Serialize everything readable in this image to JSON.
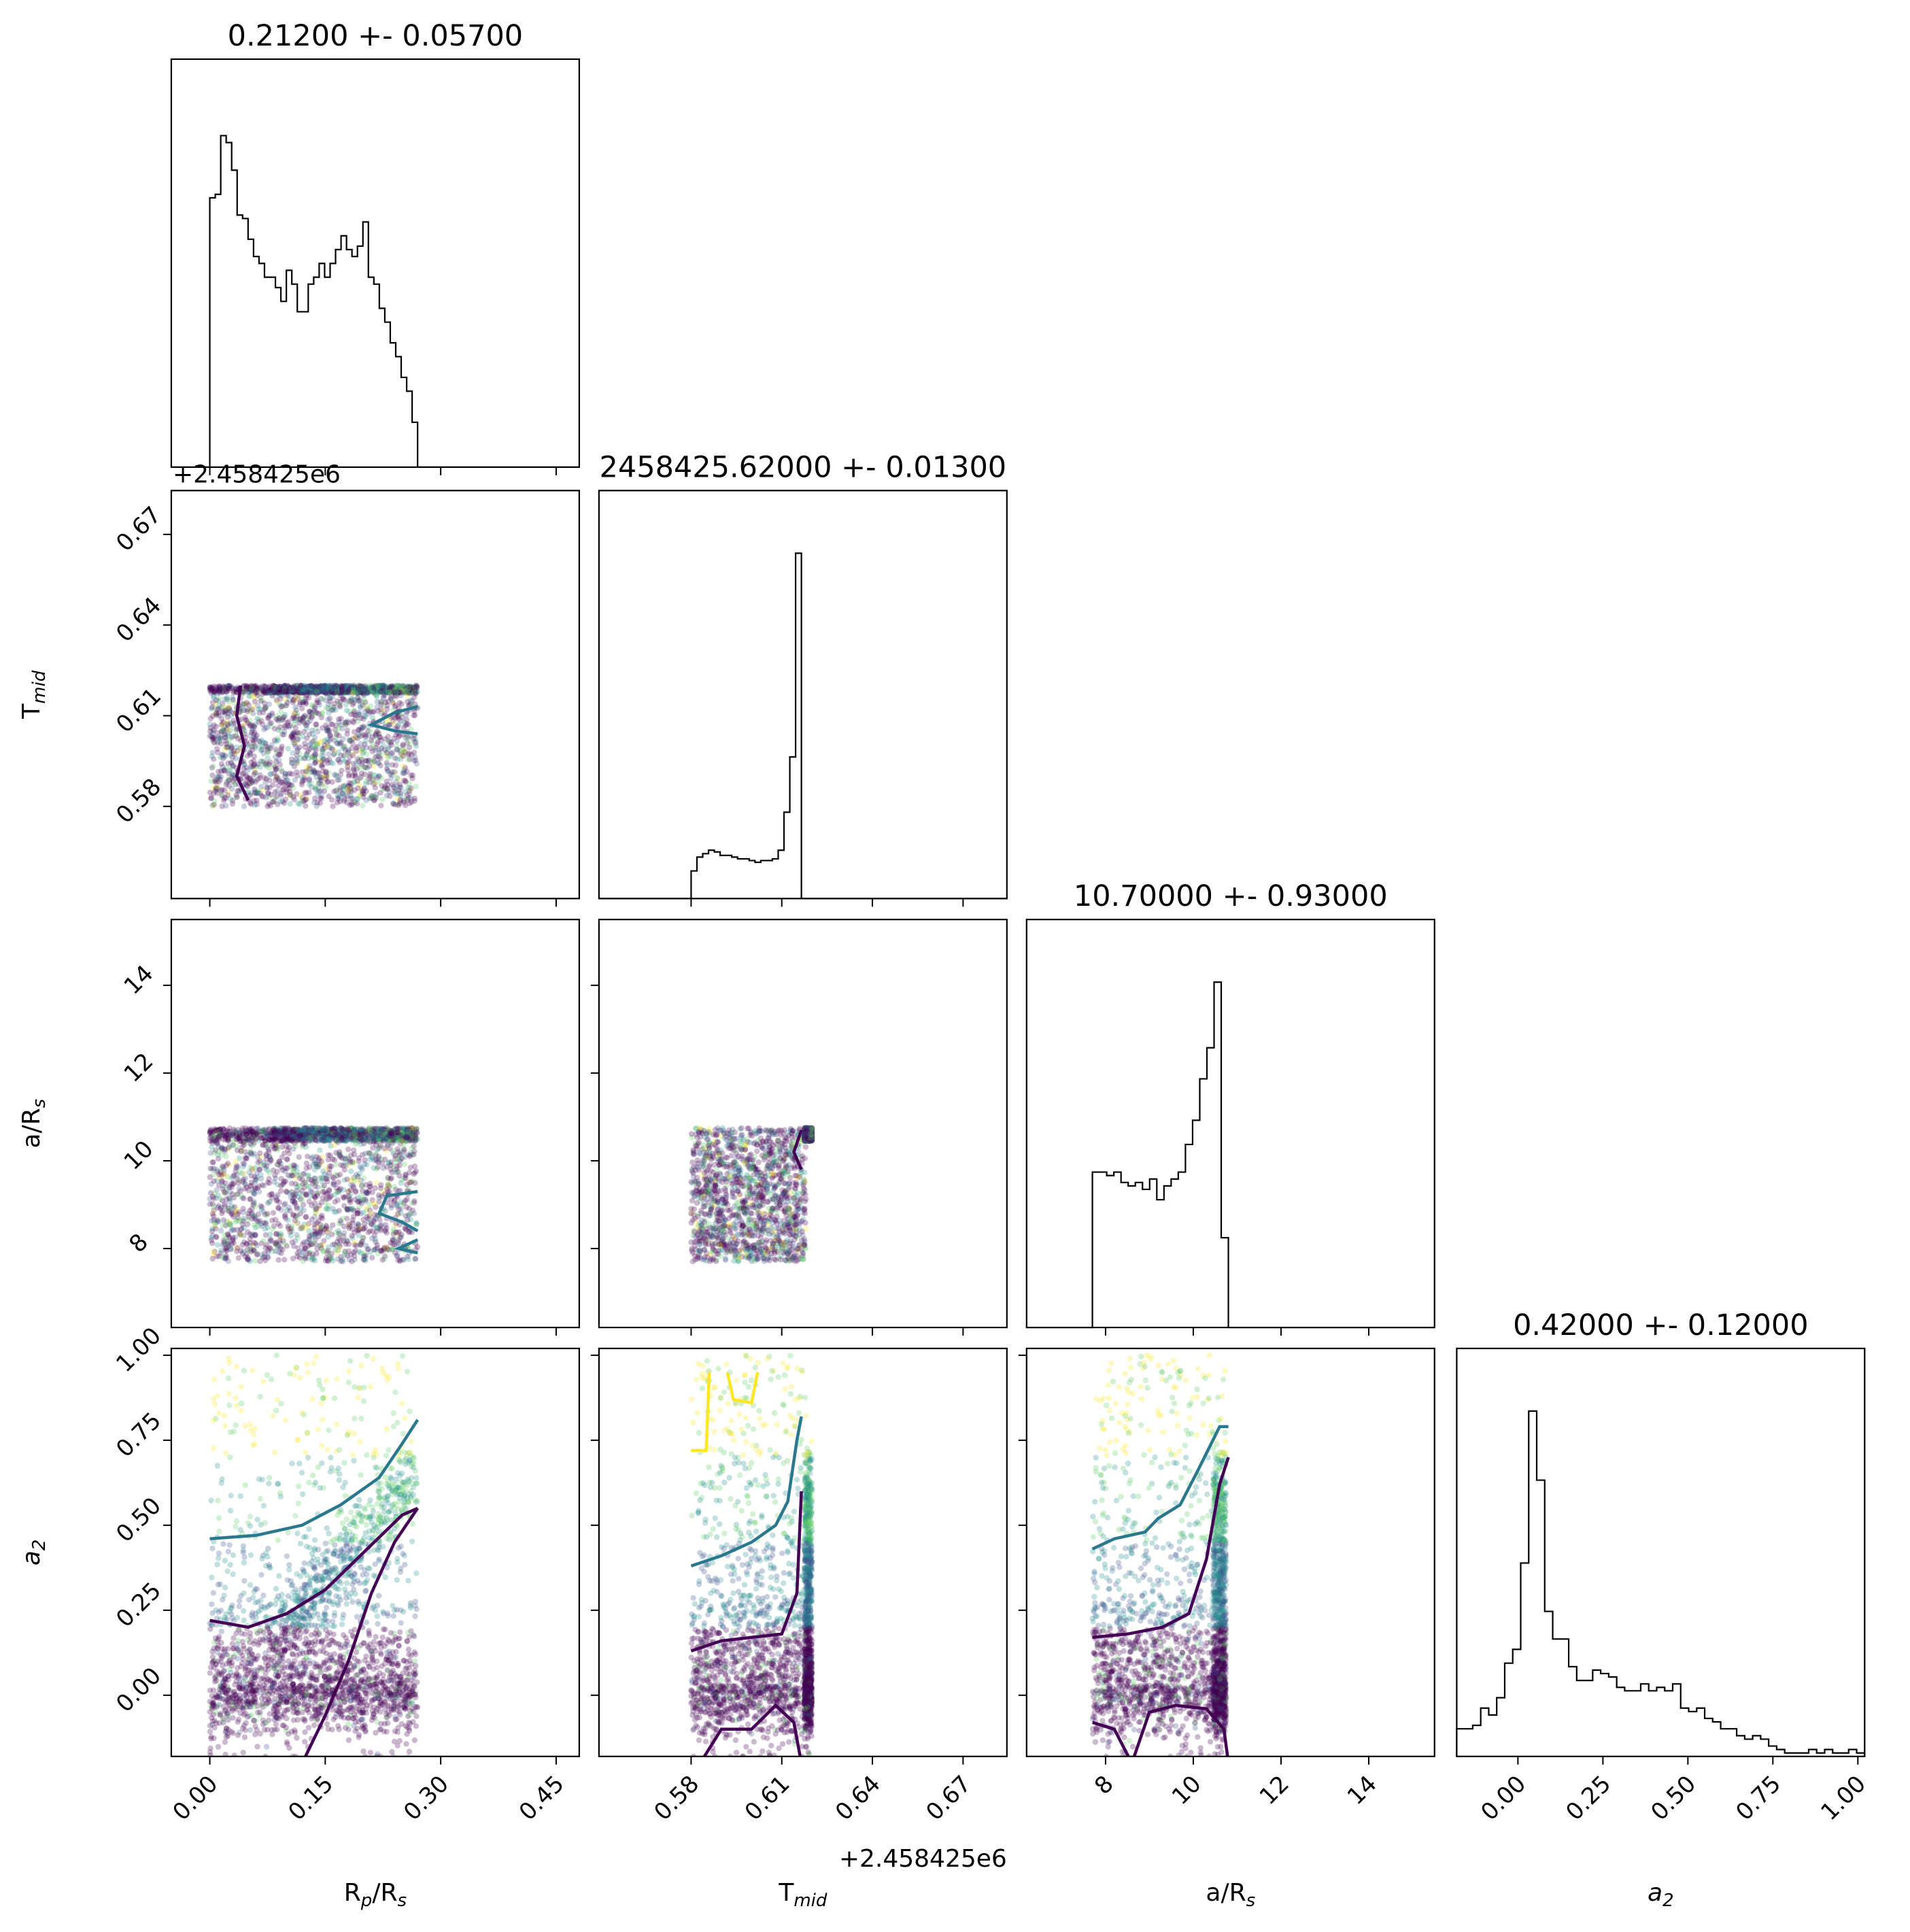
{
  "chart_data": {
    "type": "scatter",
    "kind": "corner-plot",
    "parameters": [
      {
        "key": "rp",
        "label": "R_p/R_s",
        "base": "R",
        "sub": "p",
        "tail": "/R",
        "tail_sub": "s",
        "range": [
          -0.05,
          0.48
        ],
        "ticks": [
          "0.00",
          "0.15",
          "0.30",
          "0.45"
        ],
        "tick_values": [
          0.0,
          0.15,
          0.3,
          0.45
        ],
        "title": "0.21200 +- 0.05700",
        "offset_text": ""
      },
      {
        "key": "tmid",
        "label": "T_mid",
        "base": "T",
        "sub": "mid",
        "tail": "",
        "tail_sub": "",
        "range": [
          0.5495,
          0.6845
        ],
        "ticks": [
          "0.58",
          "0.61",
          "0.64",
          "0.67"
        ],
        "tick_values": [
          0.58,
          0.61,
          0.64,
          0.67
        ],
        "title": "2458425.62000 +- 0.01300",
        "offset_text": "+2.458425e6"
      },
      {
        "key": "ars",
        "label": "a/R_s",
        "base": "a/R",
        "sub": "s",
        "tail": "",
        "tail_sub": "",
        "range": [
          6.2,
          15.5
        ],
        "ticks": [
          "8",
          "10",
          "12",
          "14"
        ],
        "tick_values": [
          8,
          10,
          12,
          14
        ],
        "title": "10.70000 +- 0.93000",
        "offset_text": ""
      },
      {
        "key": "a2",
        "label": "a_2",
        "base": "a",
        "sub": "2",
        "tail": "",
        "tail_sub": "",
        "italic": true,
        "range": [
          -0.18,
          1.02
        ],
        "ticks": [
          "0.00",
          "0.25",
          "0.50",
          "0.75",
          "1.00"
        ],
        "tick_values": [
          0.0,
          0.25,
          0.5,
          0.75,
          1.0
        ],
        "title": "0.42000 +- 0.12000",
        "offset_text": ""
      }
    ],
    "histograms": {
      "rp": {
        "bins": [
          0.0,
          0.27
        ],
        "counts": [
          0.78,
          0.79,
          0.96,
          0.94,
          0.86,
          0.73,
          0.72,
          0.66,
          0.61,
          0.59,
          0.55,
          0.55,
          0.52,
          0.48,
          0.57,
          0.53,
          0.45,
          0.45,
          0.53,
          0.55,
          0.59,
          0.55,
          0.59,
          0.63,
          0.67,
          0.63,
          0.61,
          0.64,
          0.71,
          0.55,
          0.53,
          0.46,
          0.42,
          0.36,
          0.32,
          0.26,
          0.22,
          0.13
        ]
      },
      "tmid": {
        "bins": [
          0.58,
          0.6165
        ],
        "counts": [
          0.08,
          0.12,
          0.13,
          0.14,
          0.135,
          0.125,
          0.125,
          0.12,
          0.115,
          0.115,
          0.11,
          0.105,
          0.11,
          0.11,
          0.115,
          0.14,
          0.25,
          0.41,
          1.0
        ]
      },
      "ars": {
        "bins": [
          7.7,
          10.8
        ],
        "counts": [
          0.45,
          0.45,
          0.44,
          0.45,
          0.42,
          0.41,
          0.42,
          0.4,
          0.43,
          0.37,
          0.41,
          0.43,
          0.45,
          0.53,
          0.6,
          0.72,
          0.81,
          1.0,
          0.26
        ]
      },
      "a2": {
        "bins": [
          -0.18,
          1.02
        ],
        "counts": [
          0.08,
          0.08,
          0.09,
          0.14,
          0.12,
          0.17,
          0.27,
          0.31,
          0.56,
          1.0,
          0.8,
          0.42,
          0.34,
          0.34,
          0.26,
          0.22,
          0.22,
          0.25,
          0.24,
          0.23,
          0.2,
          0.19,
          0.19,
          0.21,
          0.19,
          0.2,
          0.19,
          0.21,
          0.14,
          0.13,
          0.14,
          0.11,
          0.1,
          0.08,
          0.08,
          0.06,
          0.05,
          0.06,
          0.05,
          0.03,
          0.02,
          0.01,
          0.01,
          0.01,
          0.02,
          0.01,
          0.02,
          0.01,
          0.01,
          0.02,
          0.01
        ]
      }
    },
    "point_clouds": {
      "rp_tmid": {
        "x_range": [
          0.0,
          0.27
        ],
        "y_range": [
          0.58,
          0.62
        ]
      },
      "rp_ars": {
        "x_range": [
          0.0,
          0.27
        ],
        "y_range": [
          7.7,
          10.75
        ]
      },
      "tmid_ars": {
        "x_range": [
          0.58,
          0.618
        ],
        "y_range": [
          7.7,
          10.75
        ]
      },
      "rp_a2": {
        "x_range": [
          0.0,
          0.27
        ],
        "y_range": [
          -0.18,
          1.0
        ]
      },
      "tmid_a2": {
        "x_range": [
          0.58,
          0.618
        ],
        "y_range": [
          -0.18,
          1.0
        ]
      },
      "ars_a2": {
        "x_range": [
          7.7,
          10.8
        ],
        "y_range": [
          -0.18,
          1.0
        ]
      }
    },
    "contour_colors": [
      "#440154",
      "#2a788e",
      "#fde725"
    ],
    "point_colors": [
      "#440154",
      "#3b528b",
      "#21918c",
      "#5ec962",
      "#fde725"
    ],
    "grid": false,
    "legend": "none"
  }
}
